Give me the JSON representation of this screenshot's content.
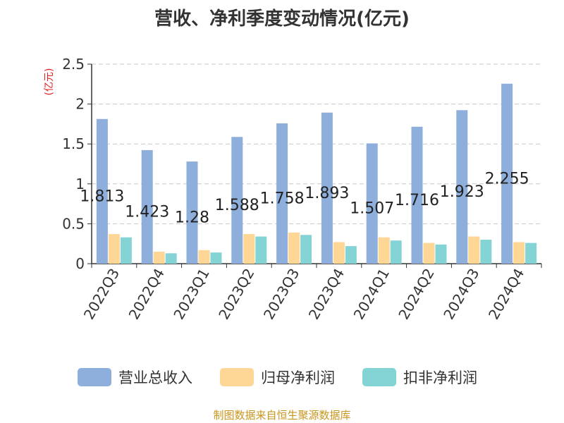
{
  "chart_data": {
    "type": "bar",
    "title": "营收、净利季度变动情况(亿元)",
    "ylabel": "(亿元)",
    "xlabel": "",
    "ylim": [
      0,
      2.5
    ],
    "yticks": [
      0,
      0.5,
      1,
      1.5,
      2,
      2.5
    ],
    "ytick_labels": [
      "0",
      "0.5",
      "1",
      "1.5",
      "2",
      "2.5"
    ],
    "grid": true,
    "legend_position": "bottom",
    "categories": [
      "2022Q3",
      "2022Q4",
      "2023Q1",
      "2023Q2",
      "2023Q3",
      "2023Q4",
      "2024Q1",
      "2024Q2",
      "2024Q3",
      "2024Q4"
    ],
    "series": [
      {
        "name": "营业总收入",
        "color": "#8eaedc",
        "values": [
          1.813,
          1.423,
          1.28,
          1.588,
          1.758,
          1.893,
          1.507,
          1.716,
          1.923,
          2.255
        ],
        "labels": [
          "1.813",
          "1.423",
          "1.28",
          "1.588",
          "1.758",
          "1.893",
          "1.507",
          "1.716",
          "1.923",
          "2.255"
        ]
      },
      {
        "name": "归母净利润",
        "color": "#fed695",
        "values": [
          0.37,
          0.15,
          0.17,
          0.37,
          0.39,
          0.27,
          0.33,
          0.26,
          0.34,
          0.27
        ]
      },
      {
        "name": "扣非净利润",
        "color": "#85d4d5",
        "values": [
          0.33,
          0.13,
          0.14,
          0.34,
          0.36,
          0.22,
          0.29,
          0.24,
          0.3,
          0.26
        ]
      }
    ]
  },
  "footer": "制图数据来自恒生聚源数据库"
}
